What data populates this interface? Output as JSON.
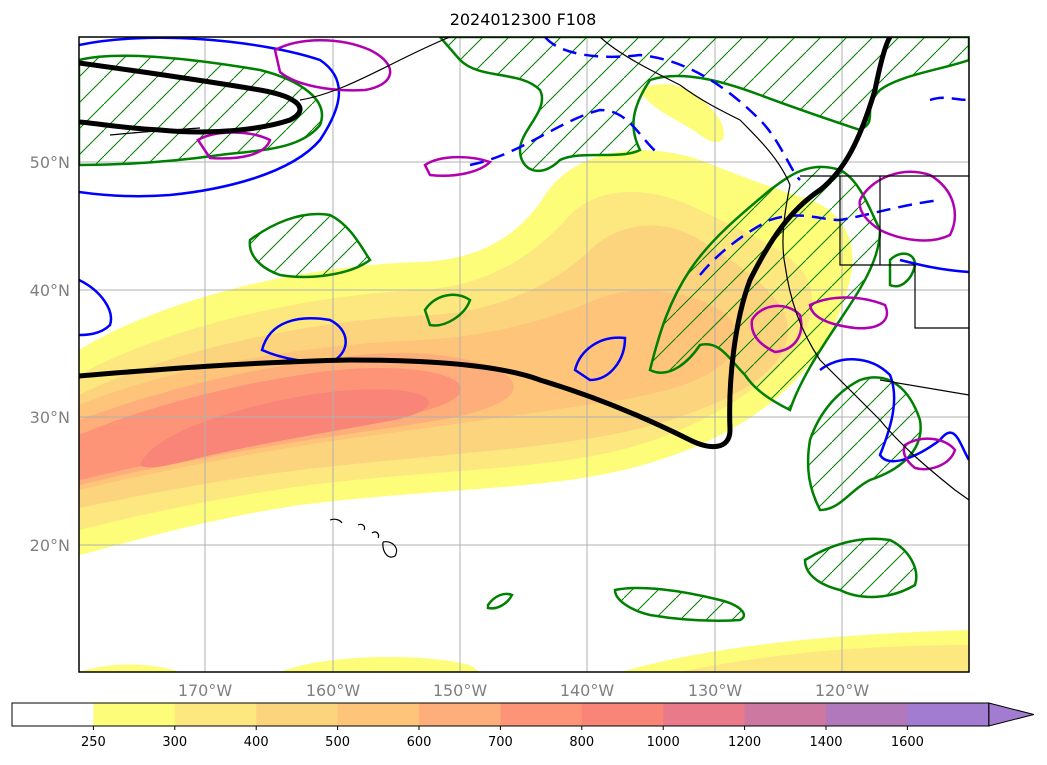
{
  "title": "2024012300 F108",
  "map": {
    "lat_labels": [
      "50°N",
      "40°N",
      "30°N",
      "20°N"
    ],
    "lon_labels": [
      "170°W",
      "160°W",
      "150°W",
      "140°W",
      "130°W",
      "120°W"
    ]
  },
  "colorbar": {
    "tick_labels": [
      "250",
      "300",
      "400",
      "500",
      "600",
      "700",
      "800",
      "1000",
      "1200",
      "1400",
      "1600"
    ],
    "colors": [
      "#ffffff",
      "#fdfd7a",
      "#fde880",
      "#fdd47e",
      "#fdc47a",
      "#fdae7a",
      "#fd9478",
      "#f98478",
      "#e97a8a",
      "#cc78a0",
      "#b278bc",
      "#a27cd0"
    ]
  },
  "colors": {
    "ivt_fill": [
      "#fdfd7a",
      "#fde880",
      "#fdd47e",
      "#fdc47a",
      "#fdae7a",
      "#fd9478",
      "#f98478"
    ],
    "height_contour": "#000000",
    "wind_contour": "#0000ff",
    "precip_contour": "#008000",
    "magenta_contour": "#b000b0",
    "grid": "#b0b0b0"
  }
}
